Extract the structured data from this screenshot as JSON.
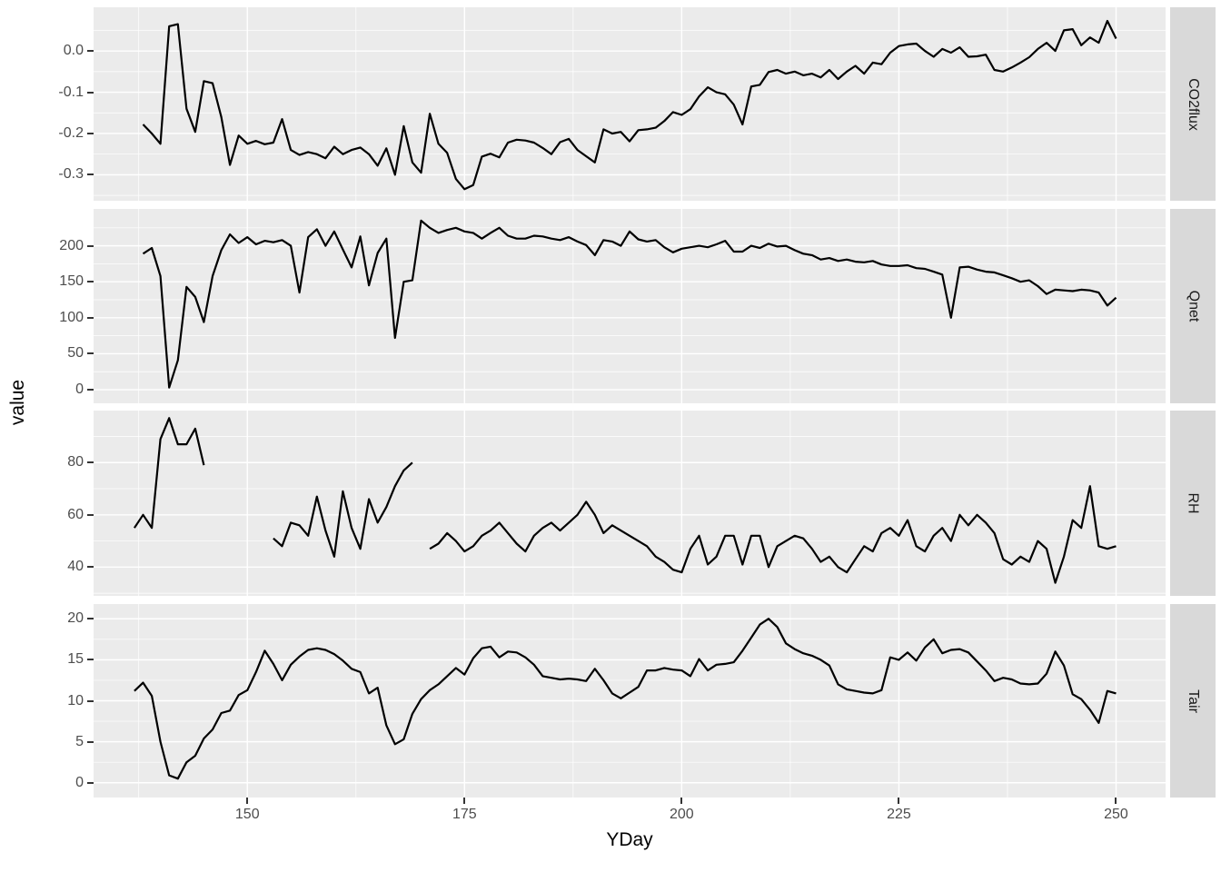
{
  "figure": {
    "xlabel": "YDay",
    "ylabel": "value"
  },
  "colors": {
    "panel_background": "#EBEBEB",
    "strip_background": "#D9D9D9",
    "strip_text": "#1A1A1A",
    "grid": "#FFFFFF",
    "line": "#000000",
    "axis_text": "#4D4D4D",
    "tick_mark": "#333333"
  },
  "chart_data": {
    "type": "line",
    "title": "",
    "xlabel": "YDay",
    "ylabel": "value",
    "legend": "none",
    "grid": "on",
    "facet": "rows, free y scales",
    "xlim": [
      132.3,
      255.7
    ],
    "xticks": [
      150,
      175,
      200,
      225,
      250
    ],
    "xticks_minor": [
      137.5,
      162.5,
      187.5,
      212.5,
      237.5
    ],
    "x": [
      137,
      138,
      139,
      140,
      141,
      142,
      143,
      144,
      145,
      146,
      147,
      148,
      149,
      150,
      151,
      152,
      153,
      154,
      155,
      156,
      157,
      158,
      159,
      160,
      161,
      162,
      163,
      164,
      165,
      166,
      167,
      168,
      169,
      170,
      171,
      172,
      173,
      174,
      175,
      176,
      177,
      178,
      179,
      180,
      181,
      182,
      183,
      184,
      185,
      186,
      187,
      188,
      189,
      190,
      191,
      192,
      193,
      194,
      195,
      196,
      197,
      198,
      199,
      200,
      201,
      202,
      203,
      204,
      205,
      206,
      207,
      208,
      209,
      210,
      211,
      212,
      213,
      214,
      215,
      216,
      217,
      218,
      219,
      220,
      221,
      222,
      223,
      224,
      225,
      226,
      227,
      228,
      229,
      230,
      231,
      232,
      233,
      234,
      235,
      236,
      237,
      238,
      239,
      240,
      241,
      242,
      243,
      244,
      245,
      246,
      247,
      248,
      249,
      250
    ],
    "series": [
      {
        "name": "CO2flux",
        "ylim": [
          -0.363,
          0.106
        ],
        "yticks": [
          0.0,
          -0.1,
          -0.2,
          -0.3
        ],
        "yticks_minor": [
          0.05,
          -0.05,
          -0.15,
          -0.25,
          -0.35
        ],
        "tick_decimals": 1,
        "values": [
          null,
          -0.178,
          -0.2,
          -0.225,
          0.06,
          0.065,
          -0.14,
          -0.196,
          -0.073,
          -0.078,
          -0.16,
          -0.276,
          -0.205,
          -0.225,
          -0.218,
          -0.226,
          -0.222,
          -0.165,
          -0.24,
          -0.252,
          -0.245,
          -0.25,
          -0.26,
          -0.232,
          -0.25,
          -0.24,
          -0.234,
          -0.25,
          -0.278,
          -0.236,
          -0.3,
          -0.182,
          -0.27,
          -0.295,
          -0.152,
          -0.225,
          -0.247,
          -0.31,
          -0.335,
          -0.325,
          -0.256,
          -0.249,
          -0.258,
          -0.222,
          -0.215,
          -0.217,
          -0.222,
          -0.235,
          -0.25,
          -0.221,
          -0.213,
          -0.24,
          -0.255,
          -0.27,
          -0.19,
          -0.2,
          -0.196,
          -0.219,
          -0.192,
          -0.19,
          -0.186,
          -0.17,
          -0.148,
          -0.155,
          -0.141,
          -0.11,
          -0.088,
          -0.1,
          -0.105,
          -0.13,
          -0.178,
          -0.086,
          -0.082,
          -0.051,
          -0.046,
          -0.055,
          -0.05,
          -0.059,
          -0.055,
          -0.064,
          -0.046,
          -0.068,
          -0.05,
          -0.036,
          -0.055,
          -0.028,
          -0.032,
          -0.004,
          0.012,
          0.016,
          0.018,
          0.0,
          -0.014,
          0.005,
          -0.004,
          0.009,
          -0.014,
          -0.013,
          -0.009,
          -0.046,
          -0.05,
          -0.04,
          -0.028,
          -0.015,
          0.005,
          0.02,
          0.0,
          0.05,
          0.053,
          0.014,
          0.033,
          0.02,
          0.073,
          0.03
        ]
      },
      {
        "name": "Qnet",
        "ylim": [
          -18.9,
          251.3
        ],
        "yticks": [
          200,
          150,
          100,
          50,
          0
        ],
        "yticks_minor": [
          225,
          175,
          125,
          75,
          25
        ],
        "tick_decimals": 0,
        "values": [
          null,
          189,
          197,
          158,
          3,
          41,
          143,
          129,
          94,
          158,
          194,
          216,
          204,
          212,
          202,
          207,
          205,
          208,
          200,
          135,
          212,
          223,
          200,
          220,
          195,
          170,
          213,
          145,
          190,
          210,
          72,
          150,
          152,
          235,
          225,
          218,
          222,
          225,
          220,
          218,
          210,
          218,
          225,
          214,
          210,
          210,
          214,
          213,
          210,
          208,
          212,
          206,
          201,
          187,
          208,
          206,
          200,
          220,
          209,
          206,
          208,
          198,
          191,
          196,
          198,
          200,
          198,
          202,
          207,
          192,
          192,
          200,
          197,
          203,
          199,
          200,
          194,
          189,
          187,
          181,
          183,
          179,
          181,
          178,
          177,
          179,
          174,
          172,
          172,
          173,
          169,
          168,
          164,
          160,
          100,
          170,
          171,
          167,
          164,
          163,
          159,
          155,
          150,
          152,
          144,
          133,
          139,
          138,
          137,
          139,
          138,
          135,
          117,
          128
        ]
      },
      {
        "name": "RH",
        "ylim": [
          29.0,
          99.9
        ],
        "yticks": [
          80,
          60,
          40
        ],
        "yticks_minor": [
          90,
          70,
          50,
          30
        ],
        "tick_decimals": 0,
        "values": [
          55,
          60,
          55,
          89,
          97,
          87,
          87,
          93,
          79,
          null,
          null,
          null,
          null,
          null,
          null,
          null,
          51,
          48,
          57,
          56,
          52,
          67,
          54,
          44,
          69,
          55,
          47,
          66,
          57,
          63,
          71,
          77,
          80,
          null,
          47,
          49,
          53,
          50,
          46,
          48,
          52,
          54,
          57,
          53,
          49,
          46,
          52,
          55,
          57,
          54,
          57,
          60,
          65,
          60,
          53,
          56,
          54,
          52,
          50,
          48,
          44,
          42,
          39,
          38,
          47,
          52,
          41,
          44,
          52,
          52,
          41,
          52,
          52,
          40,
          48,
          50,
          52,
          51,
          47,
          42,
          44,
          40,
          38,
          43,
          48,
          46,
          53,
          55,
          52,
          58,
          48,
          46,
          52,
          55,
          50,
          60,
          56,
          60,
          57,
          53,
          43,
          41,
          44,
          42,
          50,
          47,
          34,
          44,
          58,
          55,
          71,
          48,
          47,
          48
        ]
      },
      {
        "name": "Tair",
        "ylim": [
          -1.8,
          21.8
        ],
        "yticks": [
          20,
          15,
          10,
          5,
          0
        ],
        "yticks_minor": [
          17.5,
          12.5,
          7.5,
          2.5
        ],
        "tick_decimals": 0,
        "values": [
          11.2,
          12.2,
          10.6,
          5.0,
          0.9,
          0.5,
          2.5,
          3.3,
          5.4,
          6.5,
          8.5,
          8.8,
          10.7,
          11.3,
          13.5,
          16.1,
          14.5,
          12.5,
          14.4,
          15.4,
          16.2,
          16.4,
          16.2,
          15.7,
          14.9,
          13.9,
          13.5,
          10.9,
          11.6,
          7.0,
          4.7,
          5.3,
          8.4,
          10.2,
          11.3,
          12.0,
          13.0,
          14.0,
          13.2,
          15.2,
          16.4,
          16.6,
          15.3,
          16.0,
          15.9,
          15.3,
          14.4,
          13.0,
          12.8,
          12.6,
          12.7,
          12.6,
          12.4,
          13.9,
          12.5,
          10.9,
          10.3,
          11.0,
          11.7,
          13.7,
          13.7,
          14.0,
          13.8,
          13.7,
          13.0,
          15.1,
          13.7,
          14.4,
          14.5,
          14.7,
          16.1,
          17.7,
          19.3,
          20.0,
          19.0,
          17.0,
          16.3,
          15.8,
          15.5,
          15.0,
          14.3,
          12.0,
          11.4,
          11.2,
          11.0,
          10.9,
          11.3,
          15.3,
          15.0,
          15.9,
          14.9,
          16.5,
          17.5,
          15.8,
          16.2,
          16.3,
          15.9,
          14.8,
          13.7,
          12.4,
          12.8,
          12.6,
          12.1,
          12.0,
          12.1,
          13.3,
          16.0,
          14.3,
          10.8,
          10.2,
          8.9,
          7.3,
          11.2,
          10.9
        ]
      }
    ]
  }
}
